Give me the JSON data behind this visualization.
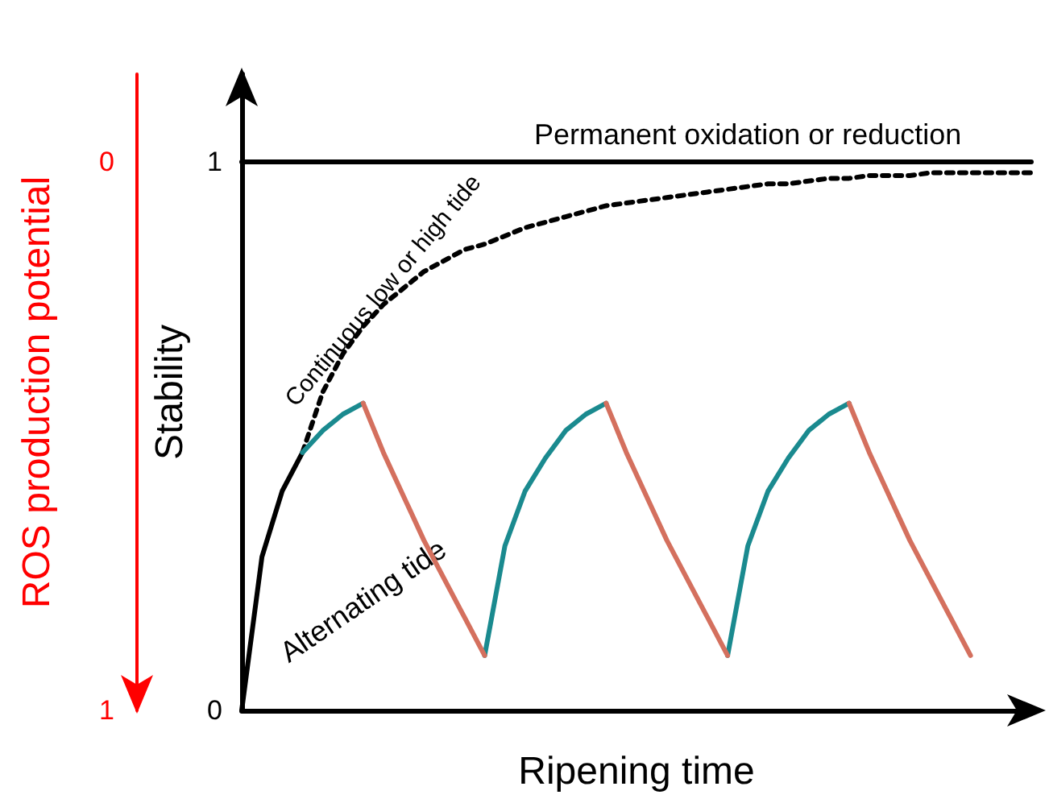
{
  "chart_data": {
    "type": "line",
    "xlabel": "Ripening time",
    "ylabel": "Stability",
    "y2label": "ROS production potential",
    "categories": [
      null,
      null,
      null,
      null,
      null,
      null,
      null,
      null,
      null,
      null,
      null,
      null,
      null,
      null,
      null,
      null,
      null,
      null,
      null,
      null,
      null,
      null,
      null,
      null,
      null,
      null,
      null,
      null,
      null,
      null,
      null,
      null,
      null,
      null,
      null,
      null,
      null,
      null,
      null,
      null
    ],
    "ylim": [
      0,
      1.16
    ],
    "yticks": [
      0,
      1
    ],
    "y2lim": [
      1,
      -0.16
    ],
    "y2ticks": [
      0,
      1
    ],
    "tick_labels": "y",
    "legend": false,
    "grid": false,
    "marker": "none",
    "series": [
      {
        "name": "Permanent oxidation or reduction",
        "color": "#000000",
        "line_style": "solid",
        "values": [
          1,
          1,
          1,
          1,
          1,
          1,
          1,
          1,
          1,
          1,
          1,
          1,
          1,
          1,
          1,
          1,
          1,
          1,
          1,
          1,
          1,
          1,
          1,
          1,
          1,
          1,
          1,
          1,
          1,
          1,
          1,
          1,
          1,
          1,
          1,
          1,
          1,
          1,
          1,
          1
        ]
      },
      {
        "name": "Continuous low or high tide",
        "color": "#000000",
        "line_style": "dashed",
        "values": [
          null,
          null,
          null,
          0.47,
          0.58,
          0.65,
          0.7,
          0.74,
          0.77,
          0.8,
          0.82,
          0.84,
          0.85,
          0.865,
          0.88,
          0.89,
          0.9,
          0.91,
          0.92,
          0.925,
          0.93,
          0.935,
          0.94,
          0.945,
          0.95,
          0.955,
          0.96,
          0.96,
          0.965,
          0.97,
          0.97,
          0.975,
          0.975,
          0.975,
          0.98,
          0.98,
          0.98,
          0.98,
          0.98,
          0.98
        ]
      },
      {
        "name": "Alternating tide",
        "color": "#000000",
        "line_style": "solid",
        "values": [
          0,
          0.28,
          0.4,
          0.47,
          null,
          null,
          null,
          null,
          null,
          null,
          null,
          null,
          null,
          null,
          null,
          null,
          null,
          null,
          null,
          null,
          null,
          null,
          null,
          null,
          null,
          null,
          null,
          null,
          null,
          null,
          null,
          null,
          null,
          null,
          null,
          null,
          null,
          null,
          null,
          null
        ]
      },
      {
        "color": "#1a8a8f",
        "line_style": "solid",
        "values": [
          null,
          null,
          null,
          0.47,
          0.51,
          0.54,
          0.56,
          null,
          null,
          null,
          null,
          null,
          0.1,
          0.3,
          0.4,
          0.46,
          0.51,
          0.54,
          0.56,
          null,
          null,
          null,
          null,
          null,
          0.1,
          0.3,
          0.4,
          0.46,
          0.51,
          0.54,
          0.56,
          null,
          null,
          null,
          null,
          null,
          null,
          null,
          null,
          null
        ]
      },
      {
        "color": "#d4705e",
        "line_style": "solid",
        "values": [
          null,
          null,
          null,
          null,
          null,
          null,
          0.56,
          0.47,
          0.39,
          0.31,
          0.24,
          0.17,
          0.1,
          null,
          null,
          null,
          null,
          null,
          0.56,
          0.47,
          0.39,
          0.31,
          0.24,
          0.17,
          0.1,
          null,
          null,
          null,
          null,
          null,
          0.56,
          0.47,
          0.39,
          0.31,
          0.24,
          0.17,
          0.1,
          null,
          null,
          null
        ]
      }
    ]
  }
}
